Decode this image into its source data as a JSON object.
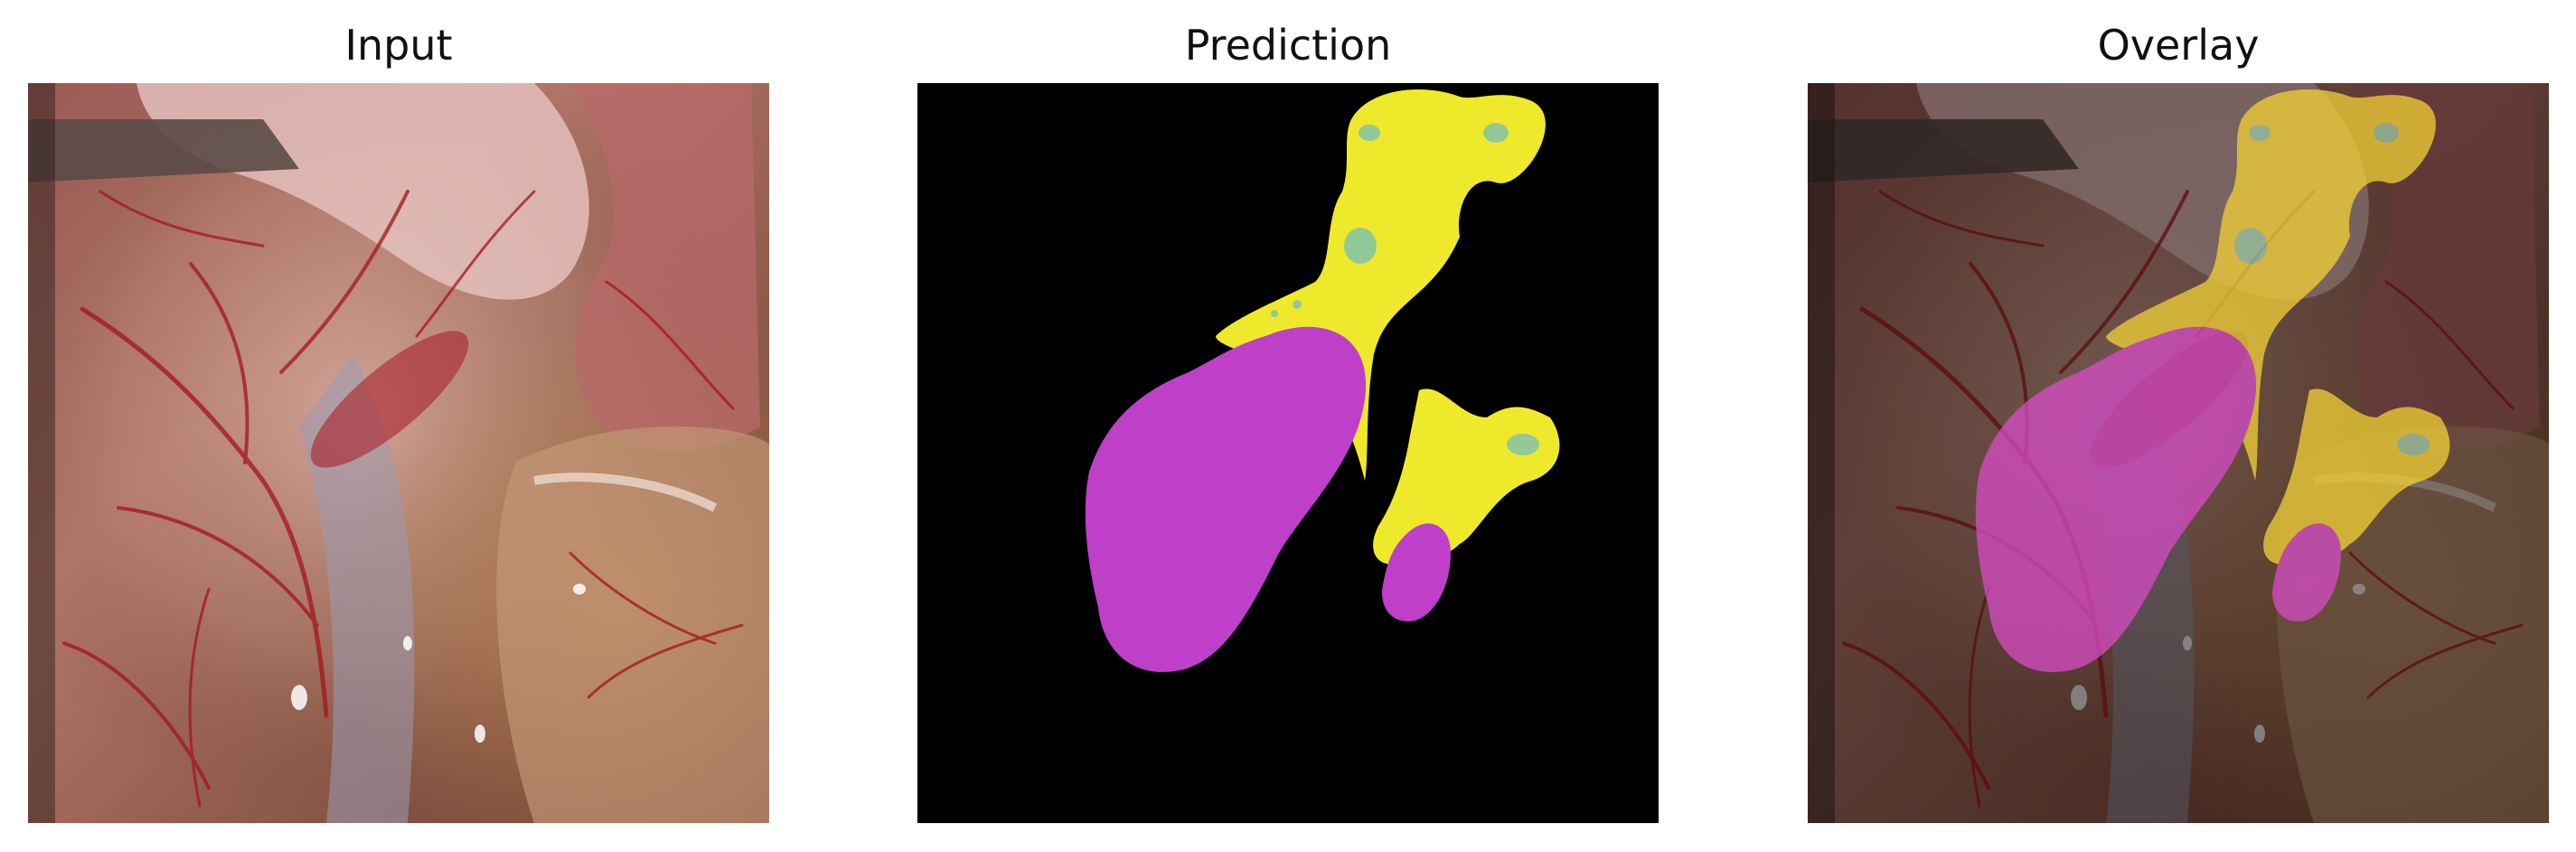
{
  "panels": [
    {
      "title": "Input"
    },
    {
      "title": "Prediction"
    },
    {
      "title": "Overlay"
    }
  ],
  "colors": {
    "background": "#000000",
    "class_yellow": "#efe92c",
    "class_magenta": "#be40c8",
    "class_teal": "#8cc79c",
    "overlay_yellow": "#f3d236",
    "overlay_magenta": "#d84cc7"
  }
}
